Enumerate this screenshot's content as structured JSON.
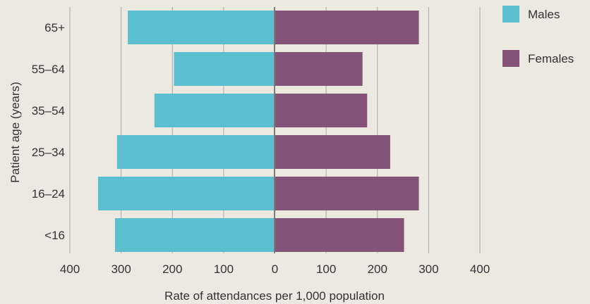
{
  "chart_data": {
    "type": "bar",
    "orientation": "horizontal-population-pyramid",
    "categories": [
      "65+",
      "55–64",
      "35–54",
      "25–34",
      "16–24",
      "<16"
    ],
    "series": [
      {
        "name": "Males",
        "values": [
          287,
          197,
          235,
          308,
          345,
          312
        ],
        "color": "#5bbfcf"
      },
      {
        "name": "Females",
        "values": [
          281,
          171,
          180,
          225,
          281,
          252
        ],
        "color": "#845478"
      }
    ],
    "x_tick_labels": [
      "400",
      "300",
      "200",
      "100",
      "0",
      "100",
      "200",
      "300",
      "400"
    ],
    "xlim": [
      -400,
      400
    ],
    "xlabel": "Rate of attendances per 1,000 population",
    "ylabel": "Patient age (years)",
    "grid": true,
    "legend_position": "top-right"
  }
}
